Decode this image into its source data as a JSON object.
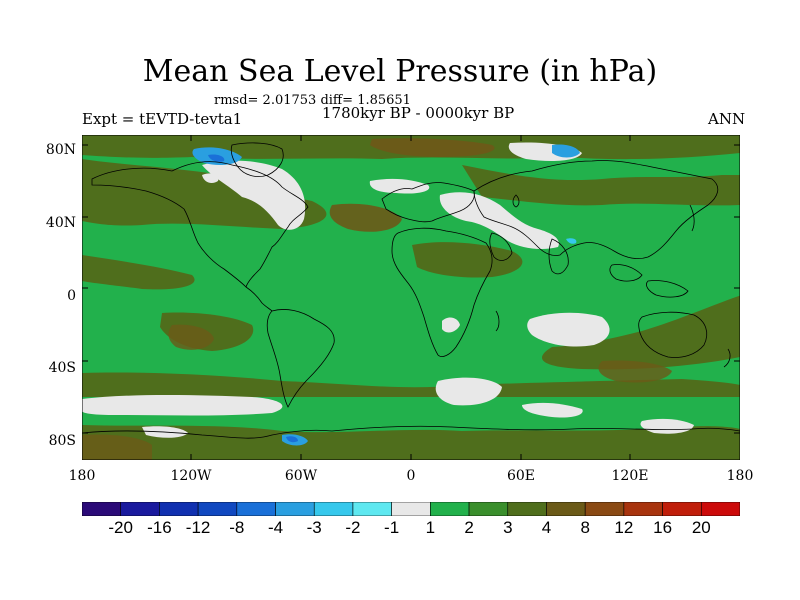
{
  "title": "Mean Sea Level Pressure (in hPa)",
  "stats": "rmsd= 2.01753 diff= 1.85651",
  "period": "1780kyr BP - 0000kyr BP",
  "experiment": "Expt = tEVTD-tevta1",
  "season": "ANN",
  "lat_labels": [
    "80N",
    "40N",
    "0",
    "40S",
    "80S"
  ],
  "lon_labels": [
    "180",
    "120W",
    "60W",
    "0",
    "60E",
    "120E",
    "180"
  ],
  "colorbar": {
    "labels": [
      "-20",
      "-16",
      "-12",
      "-8",
      "-4",
      "-3",
      "-2",
      "-1",
      "1",
      "2",
      "3",
      "4",
      "8",
      "12",
      "16",
      "20"
    ],
    "colors": [
      "#2b0a78",
      "#1a1a9e",
      "#1030b0",
      "#1048c0",
      "#1a70d8",
      "#2a9fe0",
      "#36c8ec",
      "#5ee8f0",
      "#e8e8e8",
      "#22b14c",
      "#3a8f2c",
      "#4f6e1c",
      "#6b5a18",
      "#8a4a14",
      "#a8340e",
      "#c01e0a",
      "#cc0a0a"
    ]
  },
  "colors": {
    "land_fill_green": "#22b14c",
    "dark_green": "#3a8f2c",
    "olive": "#4f6e1c",
    "brown": "#6b5a18",
    "white_region": "#e8e8e8",
    "blue_region": "#2a9fe0",
    "coast": "#000000"
  }
}
